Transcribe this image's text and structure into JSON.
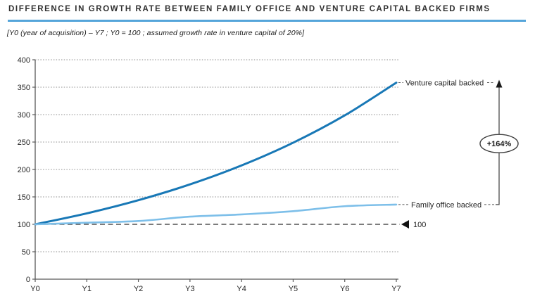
{
  "header": {
    "title": "DIFFERENCE IN GROWTH RATE BETWEEN FAMILY OFFICE AND VENTURE CAPITAL BACKED FIRMS",
    "subtitle": "[Y0 (year of acquisition) – Y7 ; Y0 = 100 ; assumed growth rate in venture capital of 20%]"
  },
  "chart_data": {
    "type": "line",
    "categories": [
      "Y0",
      "Y1",
      "Y2",
      "Y3",
      "Y4",
      "Y5",
      "Y6",
      "Y7"
    ],
    "series": [
      {
        "name": "Venture capital backed",
        "color": "#1878b6",
        "stroke_width": 3,
        "values": [
          100,
          120,
          144,
          172.8,
          207.4,
          248.8,
          298.6,
          358.3
        ]
      },
      {
        "name": "Family office backed",
        "color": "#7dbfe9",
        "stroke_width": 2.6,
        "values": [
          100,
          103,
          106,
          114,
          118,
          124,
          133,
          136
        ]
      }
    ],
    "ylim": [
      0,
      400
    ],
    "y_tick_step": 50,
    "y_tick_labels": [
      "0",
      "50",
      "100",
      "150",
      "200",
      "250",
      "300",
      "350",
      "400"
    ],
    "grid": "dotted horizontal gridlines at every 50",
    "legend_position": "labels at right end of each line",
    "baseline": {
      "value": 100,
      "label": "100",
      "marker": "left-triangle-icon",
      "style": "long-dash"
    },
    "annotation": {
      "delta_label": "+164%",
      "from_series": "Family office backed",
      "to_series": "Venture capital backed"
    }
  },
  "colors": {
    "title_rule": "#55a5da",
    "axis": "#595959",
    "gridline": "#8d8d8d",
    "baseline_dash": "#2e2e2e",
    "annotation_stroke": "#3c3c3c",
    "venture_line": "#1878b6",
    "family_line": "#7dbfe9"
  }
}
